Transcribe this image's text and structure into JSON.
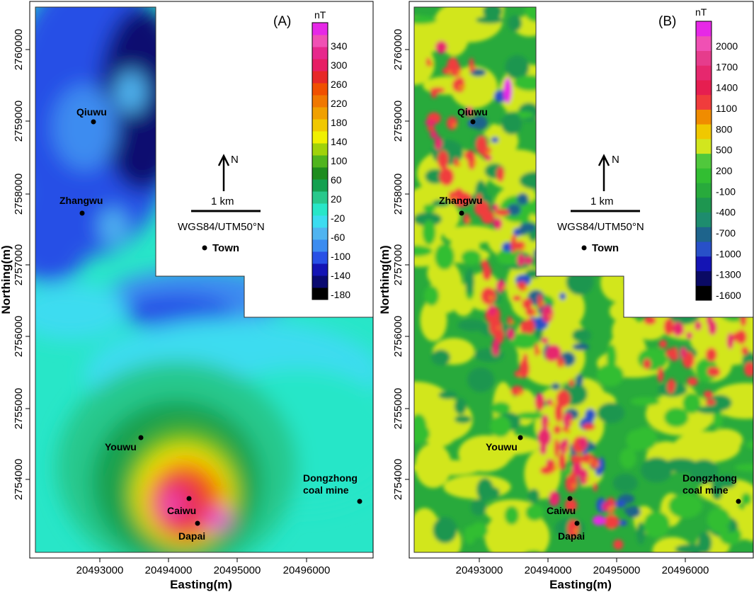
{
  "chart_data": [
    {
      "type": "heatmap",
      "panel_label": "(A)",
      "xlabel": "Easting(m)",
      "ylabel": "Northing(m)",
      "x_ticks": [
        "20493000",
        "20494000",
        "20495000",
        "20496000"
      ],
      "y_ticks": [
        "2754000",
        "2755000",
        "2756000",
        "2757000",
        "2758000",
        "2759000",
        "2760000"
      ],
      "colorbar": {
        "unit": "nT",
        "labels": [
          "340",
          "300",
          "260",
          "220",
          "180",
          "140",
          "100",
          "60",
          "20",
          "-20",
          "-60",
          "-100",
          "-140",
          "-180"
        ]
      },
      "north_arrow": "N",
      "scale_bar": "1 km",
      "crs": "WGS84/UTM50°N",
      "legend": "Town",
      "towns": [
        {
          "name": "Qiuwu"
        },
        {
          "name": "Zhangwu"
        },
        {
          "name": "Youwu"
        },
        {
          "name": "Caiwu"
        },
        {
          "name": "Dapai"
        },
        {
          "name": "Dongzhong\ncoal mine"
        }
      ]
    },
    {
      "type": "heatmap",
      "panel_label": "(B)",
      "xlabel": "Easting(m)",
      "ylabel": "Northing(m)",
      "x_ticks": [
        "20493000",
        "20494000",
        "20495000",
        "20496000"
      ],
      "y_ticks": [
        "2754000",
        "2755000",
        "2756000",
        "2757000",
        "2758000",
        "2759000",
        "2760000"
      ],
      "colorbar": {
        "unit": "nT",
        "labels": [
          "2000",
          "1700",
          "1400",
          "1100",
          "800",
          "500",
          "200",
          "-100",
          "-400",
          "-700",
          "-1000",
          "-1300",
          "-1600"
        ]
      },
      "north_arrow": "N",
      "scale_bar": "1 km",
      "crs": "WGS84/UTM50°N",
      "legend": "Town",
      "towns": [
        {
          "name": "Qiuwu"
        },
        {
          "name": "Zhangwu"
        },
        {
          "name": "Youwu"
        },
        {
          "name": "Caiwu"
        },
        {
          "name": "Dapai"
        },
        {
          "name": "Dongzhong\ncoal mine"
        }
      ]
    }
  ],
  "colors": {
    "a_scale": [
      "#000000",
      "#0a0a70",
      "#1414b4",
      "#2850e6",
      "#3c8cf0",
      "#50b4f0",
      "#3cdcf0",
      "#28e6c8",
      "#28c88c",
      "#14a050",
      "#1e8c1e",
      "#50b41e",
      "#a0d20a",
      "#f0f000",
      "#f0c800",
      "#f0a000",
      "#f07800",
      "#f05000",
      "#e62828",
      "#e61e64",
      "#e6288c",
      "#f050b4",
      "#e628e6"
    ],
    "b_scale": [
      "#000000",
      "#0a0a64",
      "#1414b4",
      "#2850c8",
      "#1e648c",
      "#1e8c6e",
      "#1e9650",
      "#28aa3c",
      "#32be32",
      "#50c83c",
      "#d2e61e",
      "#f0c800",
      "#f08c00",
      "#f03c3c",
      "#e61e50",
      "#e6286e",
      "#e63c8c",
      "#f050b4",
      "#e628e6"
    ]
  }
}
